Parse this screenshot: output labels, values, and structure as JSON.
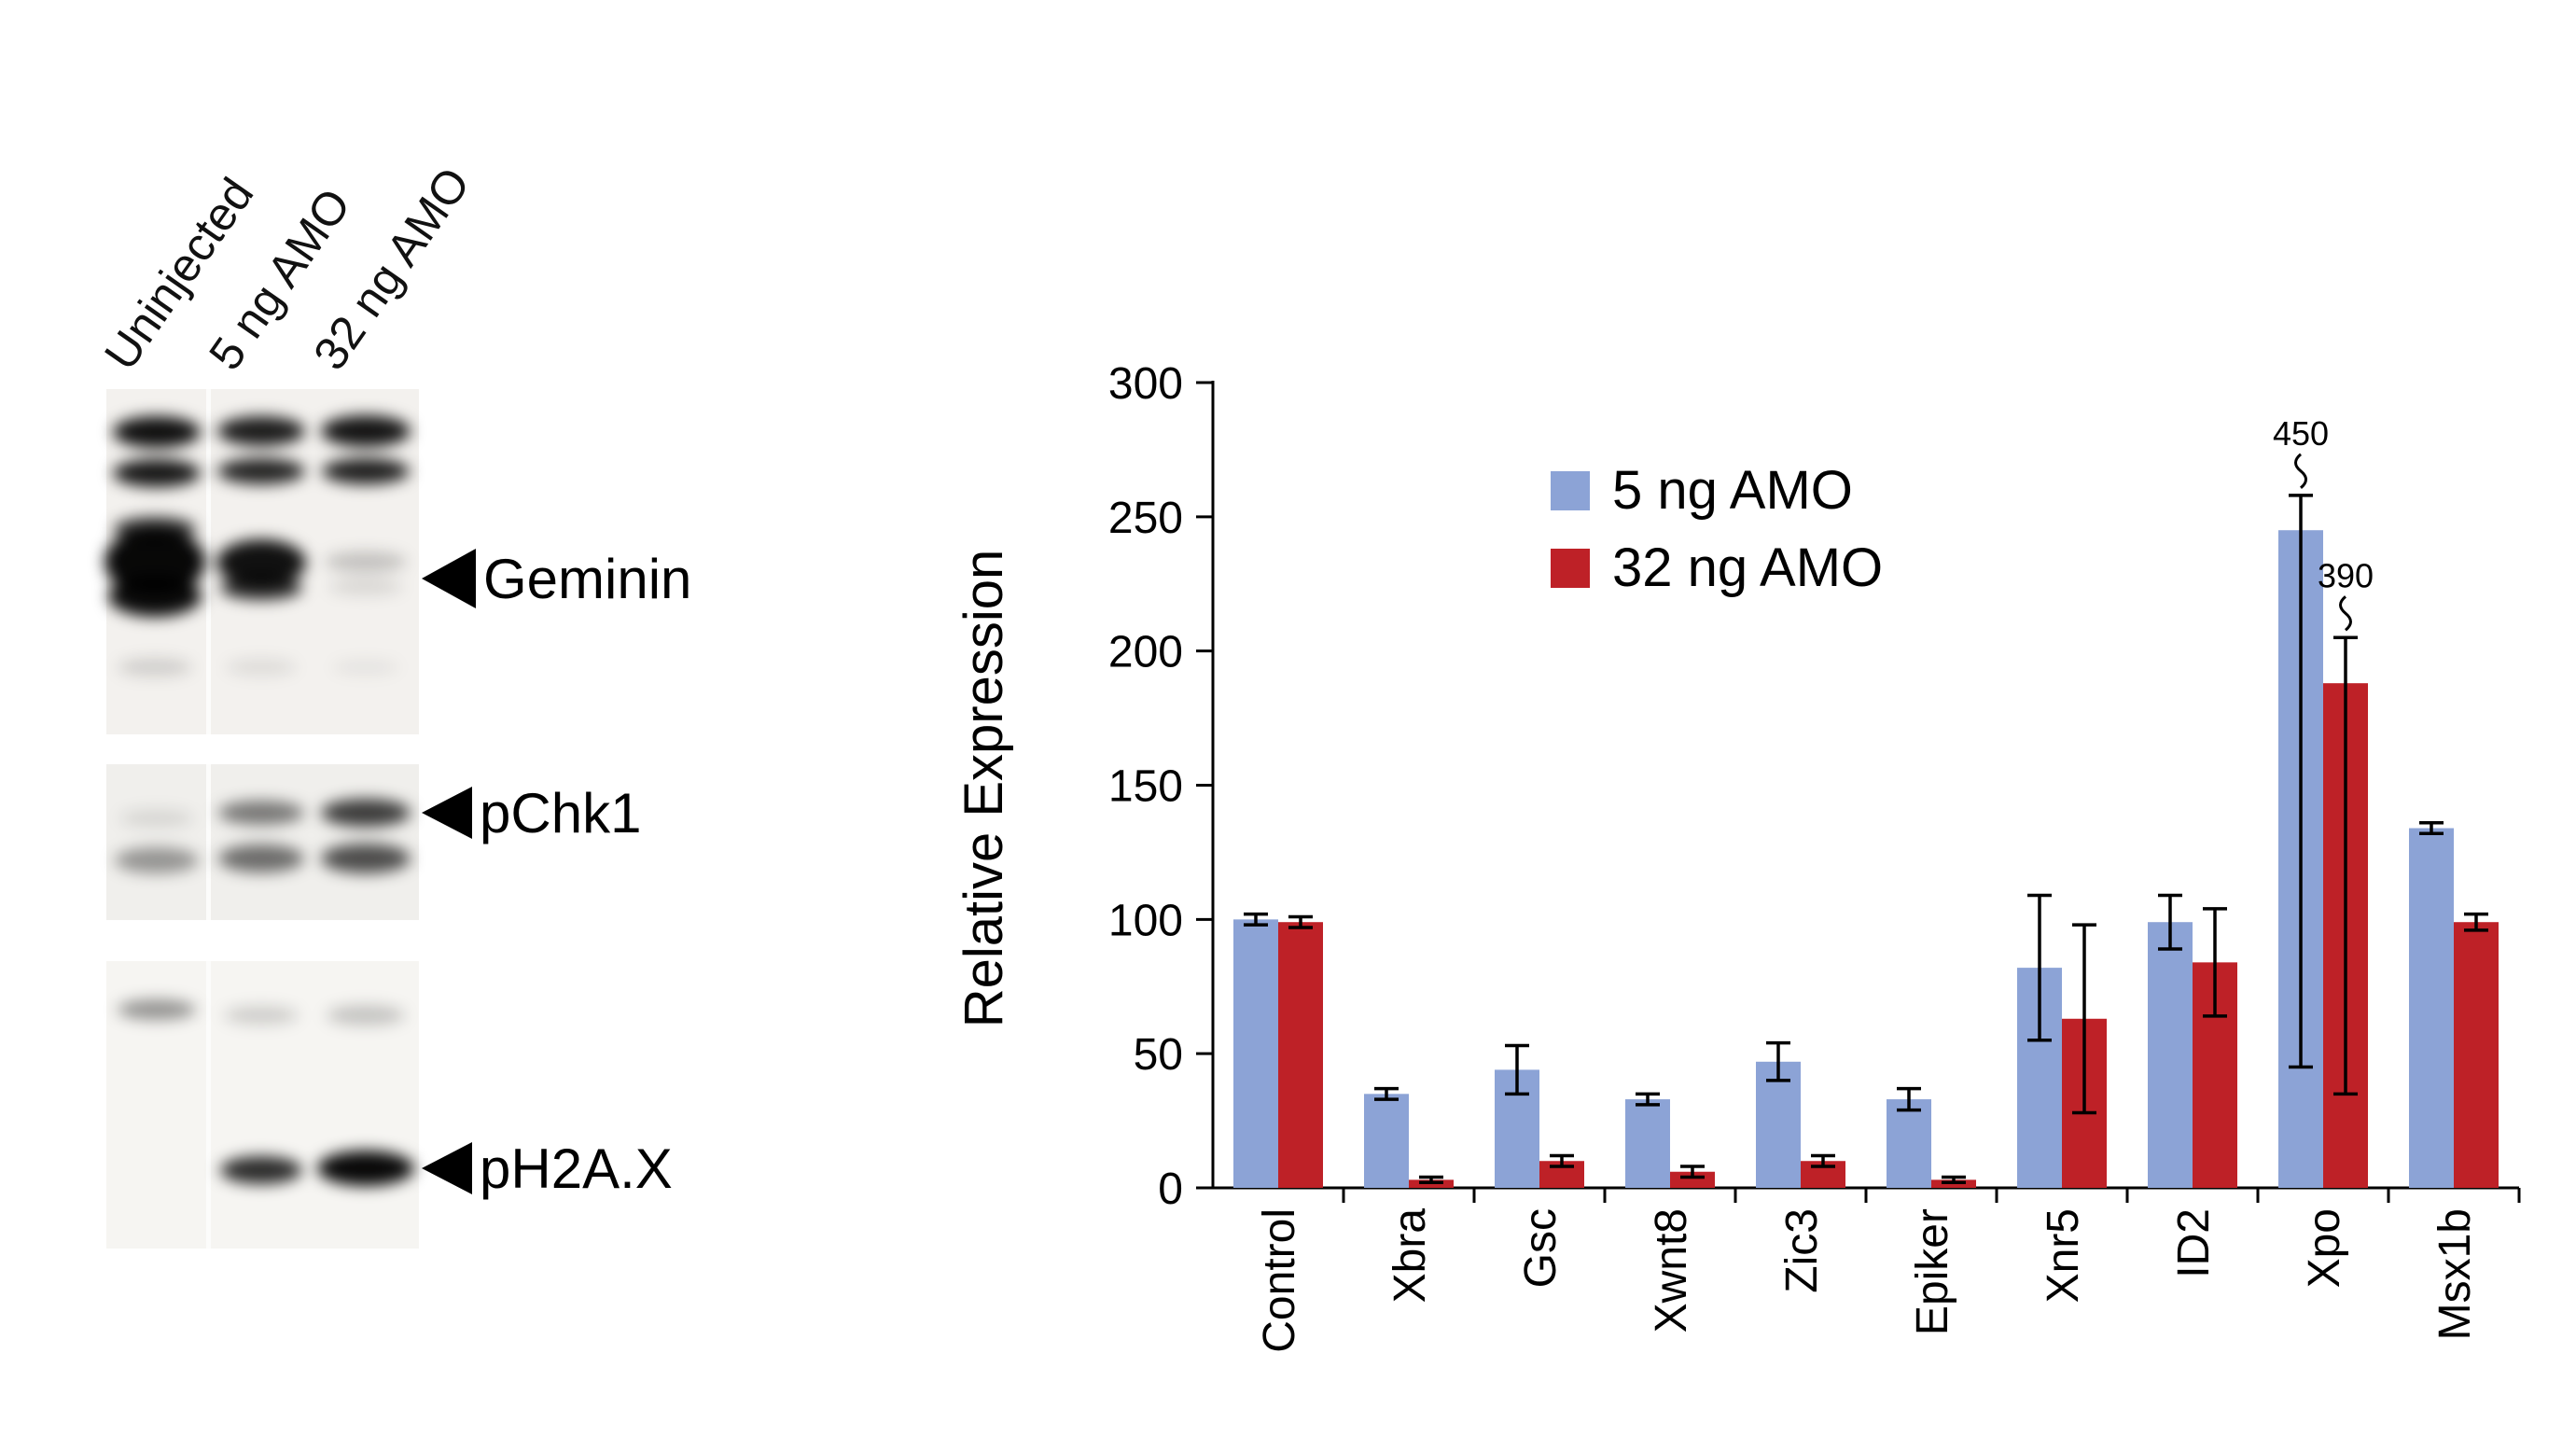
{
  "figure": {
    "blot": {
      "lane_labels": [
        "Uninjected",
        "5 ng AMO",
        "32 ng AMO"
      ],
      "bands": [
        {
          "label": "Geminin"
        },
        {
          "label": "pChk1"
        },
        {
          "label": "pH2A.X"
        }
      ]
    }
  },
  "chart_data": {
    "type": "bar",
    "title": "",
    "xlabel": "",
    "ylabel": "Relative Expression",
    "ylim": [
      0,
      300
    ],
    "yticks": [
      0,
      50,
      100,
      150,
      200,
      250,
      300
    ],
    "grid": false,
    "legend_position": "upper-left-inside",
    "categories": [
      "Control",
      "Xbra",
      "Gsc",
      "Xwnt8",
      "Zic3",
      "Epiker",
      "Xnr5",
      "ID2",
      "Xpo",
      "Msx1b"
    ],
    "series": [
      {
        "name": "5 ng AMO",
        "color": "#8CA3D6",
        "values": [
          100,
          35,
          44,
          33,
          47,
          33,
          82,
          99,
          245,
          134
        ],
        "err_plus": [
          2,
          2,
          9,
          2,
          7,
          4,
          27,
          10,
          13,
          2
        ],
        "err_minus": [
          2,
          2,
          9,
          2,
          7,
          4,
          27,
          10,
          200,
          2
        ]
      },
      {
        "name": "32 ng AMO",
        "color": "#BE2127",
        "values": [
          99,
          3,
          10,
          6,
          10,
          3,
          63,
          84,
          188,
          99
        ],
        "err_plus": [
          2,
          1,
          2,
          2,
          2,
          1,
          35,
          20,
          17,
          3
        ],
        "err_minus": [
          2,
          1,
          2,
          2,
          2,
          1,
          35,
          20,
          153,
          3
        ]
      }
    ],
    "annotations": [
      {
        "category": "Xpo",
        "series": 0,
        "text": "450"
      },
      {
        "category": "Xpo",
        "series": 1,
        "text": "390"
      }
    ]
  }
}
